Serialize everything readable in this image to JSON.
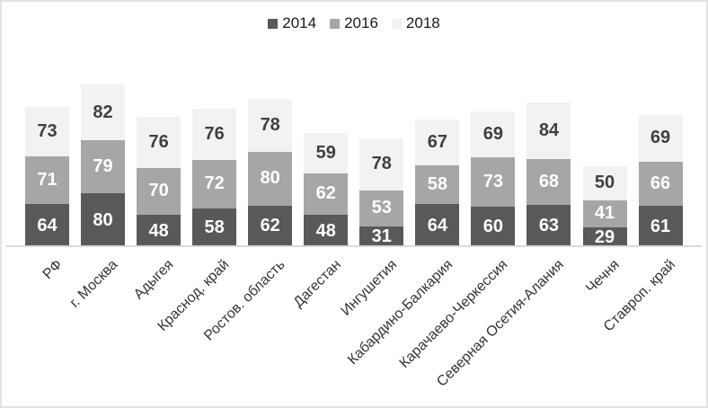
{
  "chart_data": {
    "type": "bar",
    "stacked": true,
    "categories": [
      "РФ",
      "г. Москва",
      "Адыгея",
      "Краснод. край",
      "Ростов. область",
      "Дагестан",
      "Ингушетия",
      "Кабардино-Балкария",
      "Карачаево-Черкессия",
      "Северная Осетия-Алания",
      "Чечня",
      "Ставроп. край"
    ],
    "series": [
      {
        "name": "2014",
        "color": "#595959",
        "label_color": "#ffffff",
        "values": [
          64,
          80,
          48,
          58,
          62,
          48,
          31,
          64,
          60,
          63,
          29,
          61
        ]
      },
      {
        "name": "2016",
        "color": "#a6a6a6",
        "label_color": "#ffffff",
        "values": [
          71,
          79,
          70,
          72,
          80,
          62,
          53,
          58,
          73,
          68,
          41,
          66
        ]
      },
      {
        "name": "2018",
        "color": "#f2f2f2",
        "label_color": "#404040",
        "values": [
          73,
          82,
          76,
          76,
          78,
          59,
          78,
          67,
          69,
          84,
          50,
          69
        ]
      }
    ],
    "legend_position": "top",
    "data_labels": "center",
    "x_tick_rotation": 45,
    "background": "#ffffff",
    "axis_line_color": "#d9d9d9",
    "frame_border_color": "#e3e3e3",
    "grid": false,
    "xlabel": "",
    "ylabel": "",
    "title": ""
  }
}
